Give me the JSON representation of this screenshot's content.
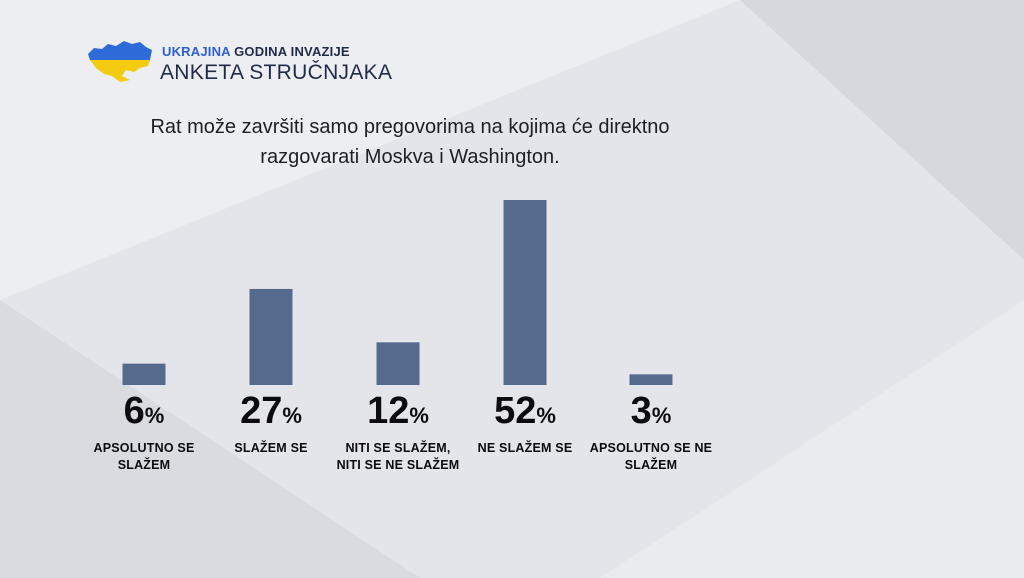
{
  "brand": {
    "line1_accent": "UKRAJINA",
    "line1_rest": " GODINA INVAZIJE",
    "line2": "ANKETA STRUČNJAKA"
  },
  "colors": {
    "bar": "#566a8d",
    "brand_blue": "#2f5fcf",
    "flag_blue": "#2f6bd8",
    "flag_yellow": "#f3cc12",
    "text_dark": "#0c0c10"
  },
  "chart_data": {
    "type": "bar",
    "title": "Rat može završiti samo pregovorima na kojima će direktno razgovarati Moskva i Washington.",
    "categories": [
      "APSOLUTNO SE SLAŽEM",
      "SLAŽEM SE",
      "NITI SE SLAŽEM, NITI SE NE SLAŽEM",
      "NE SLAŽEM SE",
      "APSOLUTNO SE NE SLAŽEM"
    ],
    "values": [
      6,
      27,
      12,
      52,
      3
    ],
    "value_labels": [
      "6",
      "27",
      "12",
      "52",
      "3"
    ],
    "unit": "%",
    "ylim": [
      0,
      52
    ],
    "grid": false,
    "legend": "none"
  }
}
